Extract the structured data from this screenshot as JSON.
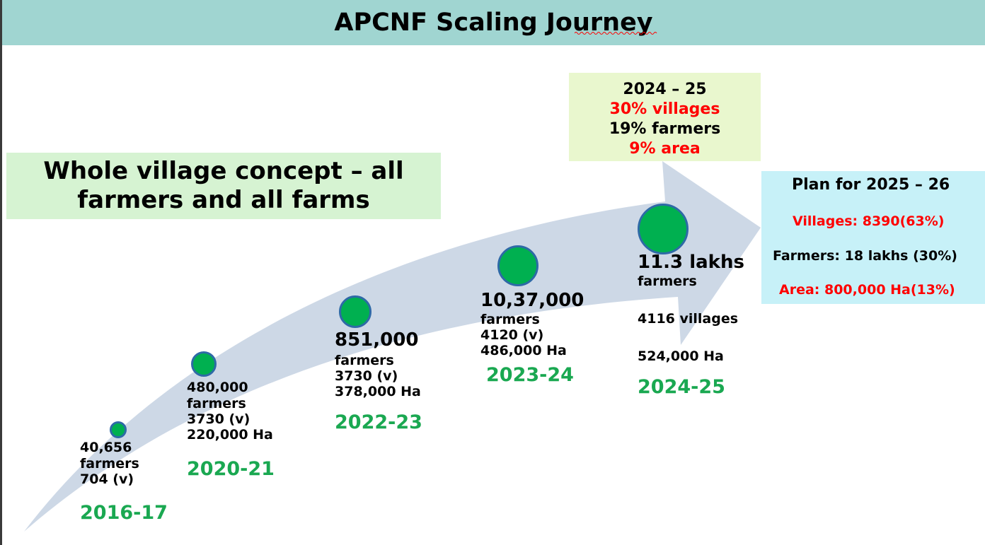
{
  "title": "APCNF Scaling Journey",
  "concept": "Whole village concept – all farmers and all farms",
  "summary": {
    "year": "2024 – 25",
    "villages": "30% villages",
    "farmers": "19% farmers",
    "area": "9% area"
  },
  "plan": {
    "title": "Plan for 2025 – 26",
    "villages": "Villages: 8390(63%)",
    "farmers": "Farmers: 18 lakhs  (30%)",
    "area": "Area: 800,000 Ha(13%)"
  },
  "milestones": [
    {
      "year": "2016-17",
      "count": "40,656",
      "unit": "farmers",
      "villages": "704 (v)"
    },
    {
      "year": "2020-21",
      "count": "480,000",
      "unit": "farmers",
      "villages": "3730  (v)",
      "area": "220,000  Ha"
    },
    {
      "year": "2022-23",
      "count": "851,000",
      "unit": "farmers",
      "villages": "3730 (v)",
      "area": "378,000  Ha"
    },
    {
      "year": "2023-24",
      "count": "10,37,000",
      "unit": "farmers",
      "villages": "4120 (v)",
      "area": "486,000 Ha"
    },
    {
      "year": "2024-25",
      "count": "11.3 lakhs",
      "unit": "farmers",
      "villages": "4116 villages",
      "area": "524,000 Ha"
    }
  ],
  "colors": {
    "title_bar": "#a0d5d1",
    "arrow": "#cdd8e6",
    "dot_fill": "#00b050",
    "dot_border": "#2e6aa6",
    "year_text": "#1aa851",
    "highlight": "#ff0000"
  }
}
